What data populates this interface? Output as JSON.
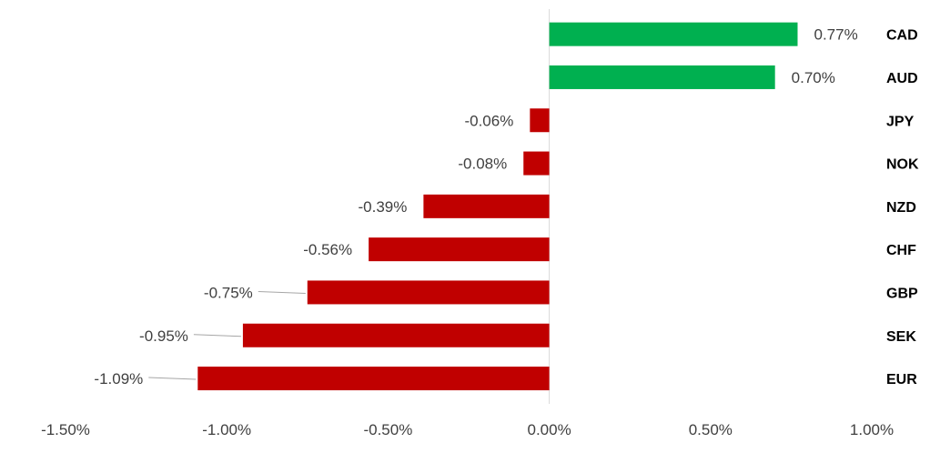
{
  "chart_data": {
    "type": "bar",
    "orientation": "horizontal",
    "categories": [
      "CAD",
      "AUD",
      "JPY",
      "NOK",
      "NZD",
      "CHF",
      "GBP",
      "SEK",
      "EUR"
    ],
    "values": [
      0.77,
      0.7,
      -0.06,
      -0.08,
      -0.39,
      -0.56,
      -0.75,
      -0.95,
      -1.09
    ],
    "value_labels": [
      "0.77%",
      "0.70%",
      "-0.06%",
      "-0.08%",
      "-0.39%",
      "-0.56%",
      "-0.75%",
      "-0.95%",
      "-1.09%"
    ],
    "xlim": [
      -1.5,
      1.0
    ],
    "x_ticks": [
      -1.5,
      -1.0,
      -0.5,
      0.0,
      0.5,
      1.0
    ],
    "x_tick_labels": [
      "-1.50%",
      "-1.00%",
      "-0.50%",
      "0.00%",
      "0.50%",
      "1.00%"
    ],
    "category_label_position": "right",
    "grid": false,
    "legend": "none",
    "colors": {
      "positive": "#00b050",
      "negative": "#c00000",
      "axis": "#d9d9d9",
      "leader_line": "#a6a6a6"
    },
    "title": "",
    "xlabel": "",
    "ylabel": ""
  }
}
